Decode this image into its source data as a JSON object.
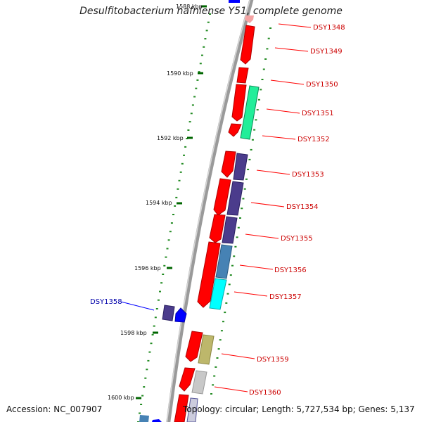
{
  "header": {
    "title": "Desulfitobacterium hafniense Y51, complete genome"
  },
  "footer": {
    "accession": "Accession: NC_007907",
    "summary": "Topology: circular; Length: 5,727,534 bp; Genes: 5,137"
  },
  "colors": {
    "backbone": "#888888",
    "forward_gene": "#ff0000",
    "forward_label": "#cc0000",
    "reverse_label": "#0000aa",
    "tick": "#006600",
    "minor_tick": "#228B22"
  },
  "scale_ticks": [
    {
      "label": "1588 kbp"
    },
    {
      "label": "1590 kbp"
    },
    {
      "label": "1592 kbp"
    },
    {
      "label": "1594 kbp"
    },
    {
      "label": "1596 kbp"
    },
    {
      "label": "1598 kbp"
    },
    {
      "label": "1600 kbp"
    }
  ],
  "gene_labels": [
    {
      "name": "DSY1348",
      "strand": "forward"
    },
    {
      "name": "DSY1349",
      "strand": "forward"
    },
    {
      "name": "DSY1350",
      "strand": "forward"
    },
    {
      "name": "DSY1351",
      "strand": "forward"
    },
    {
      "name": "DSY1352",
      "strand": "forward"
    },
    {
      "name": "DSY1353",
      "strand": "forward"
    },
    {
      "name": "DSY1354",
      "strand": "forward"
    },
    {
      "name": "DSY1355",
      "strand": "forward"
    },
    {
      "name": "DSY1356",
      "strand": "forward"
    },
    {
      "name": "DSY1357",
      "strand": "forward"
    },
    {
      "name": "DSY1358",
      "strand": "reverse"
    },
    {
      "name": "DSY1359",
      "strand": "forward"
    },
    {
      "name": "DSY1360",
      "strand": "forward"
    }
  ]
}
